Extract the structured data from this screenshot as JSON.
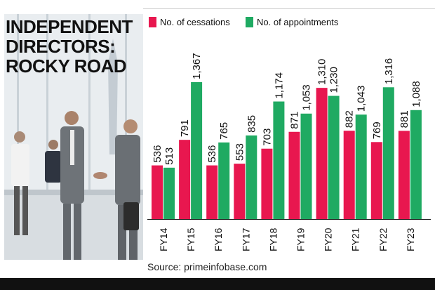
{
  "title": [
    "INDEPENDENT",
    "DIRECTORS:",
    "ROCKY ROAD"
  ],
  "source": "Source: primeinfobase.com",
  "colors": {
    "cessations": "#e8174f",
    "appointments": "#1faa62",
    "bottom_bar": "#111111"
  },
  "chart_data": {
    "type": "bar",
    "categories": [
      "FY14",
      "FY15",
      "FY16",
      "FY17",
      "FY18",
      "FY19",
      "FY20",
      "FY21",
      "FY22",
      "FY23"
    ],
    "series": [
      {
        "name": "No. of cessations",
        "values": [
          536,
          791,
          536,
          553,
          703,
          871,
          1310,
          882,
          769,
          881
        ],
        "labels": [
          "536",
          "791",
          "536",
          "553",
          "703",
          "871",
          "1,310",
          "882",
          "769",
          "881"
        ]
      },
      {
        "name": "No. of appointments",
        "values": [
          513,
          1367,
          765,
          835,
          1174,
          1053,
          1230,
          1043,
          1316,
          1088
        ],
        "labels": [
          "513",
          "1,367",
          "765",
          "835",
          "1,174",
          "1,053",
          "1,230",
          "1,043",
          "1,316",
          "1,088"
        ]
      }
    ],
    "legend_position": "top",
    "grid": false,
    "ylim": [
      0,
      1500
    ]
  }
}
